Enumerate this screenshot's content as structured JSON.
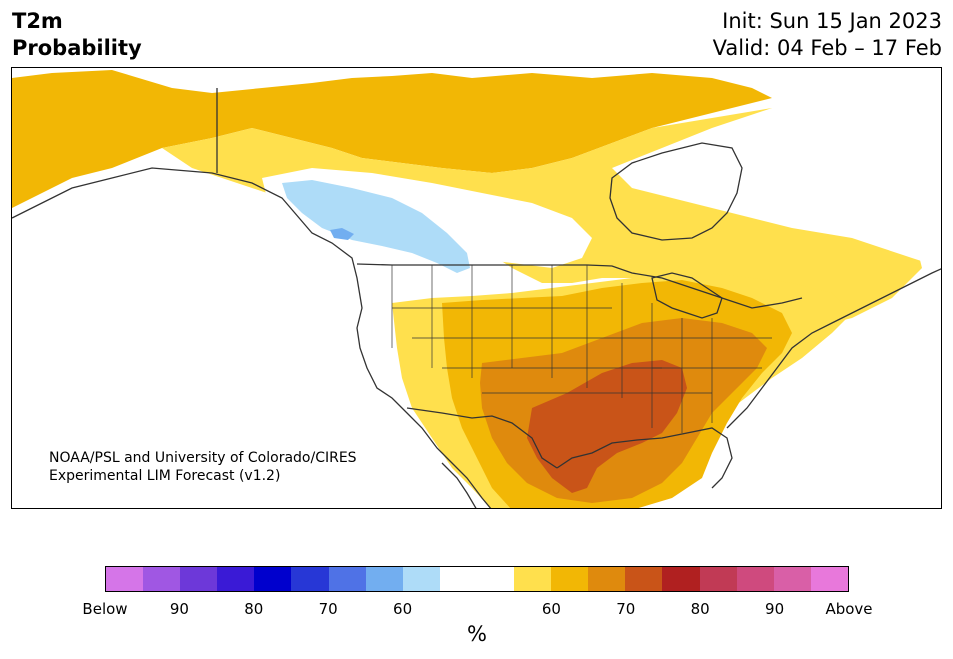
{
  "title": {
    "line1": "T2m",
    "line2": "Probability"
  },
  "init": "Init: Sun 15 Jan 2023",
  "valid": "Valid: 04 Feb – 17 Feb",
  "credit": {
    "line1": "NOAA/PSL and University of Colorado/CIRES",
    "line2": "Experimental LIM Forecast (v1.2)"
  },
  "colorbar": {
    "colors": [
      "#d575e8",
      "#a057e3",
      "#6d38d9",
      "#3a1ad6",
      "#0000cd",
      "#2737d6",
      "#4f72e6",
      "#72aef0",
      "#aedcf8",
      "#ffffff",
      "#ffffff",
      "#ffe04d",
      "#f2b705",
      "#df8a0d",
      "#c95418",
      "#b02020",
      "#c13a55",
      "#cf4a7e",
      "#d95fa7",
      "#e878db"
    ],
    "tick_labels": [
      "Below",
      "90",
      "80",
      "70",
      "60",
      "60",
      "70",
      "80",
      "90",
      "Above"
    ],
    "unit": "%"
  },
  "map_colors": {
    "p50_60": "#ffe04d",
    "p60_65": "#f2b705",
    "p65_70": "#df8a0d",
    "p70_75": "#c95418",
    "below60": "#aedcf8",
    "below65": "#72aef0",
    "outline": "#333333"
  }
}
